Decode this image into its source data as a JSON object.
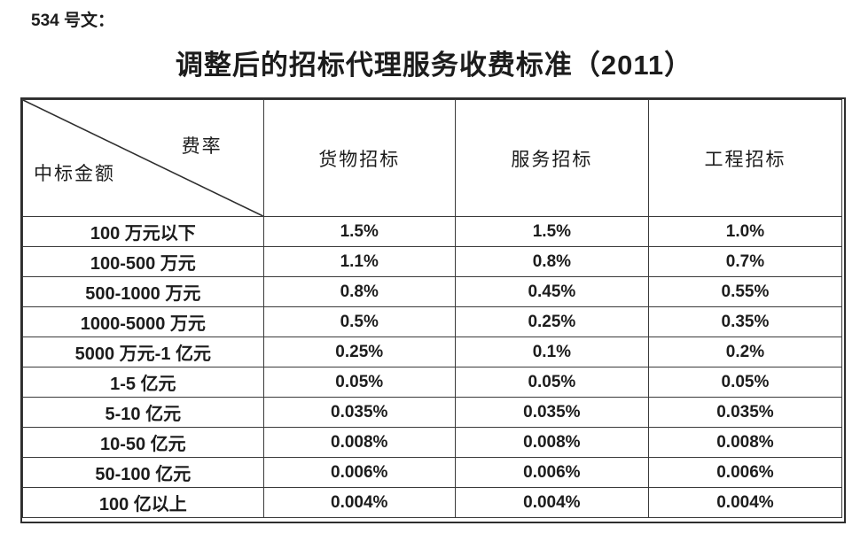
{
  "doc_label": "534 号文：",
  "title": "调整后的招标代理服务收费标准（2011）",
  "table": {
    "corner": {
      "top_right": "费率",
      "bottom_left": "中标金额"
    },
    "columns": [
      "货物招标",
      "服务招标",
      "工程招标"
    ],
    "rows": [
      {
        "label": "100 万元以下",
        "values": [
          "1.5%",
          "1.5%",
          "1.0%"
        ]
      },
      {
        "label": "100-500 万元",
        "values": [
          "1.1%",
          "0.8%",
          "0.7%"
        ]
      },
      {
        "label": "500-1000 万元",
        "values": [
          "0.8%",
          "0.45%",
          "0.55%"
        ]
      },
      {
        "label": "1000-5000 万元",
        "values": [
          "0.5%",
          "0.25%",
          "0.35%"
        ]
      },
      {
        "label": "5000 万元-1 亿元",
        "values": [
          "0.25%",
          "0.1%",
          "0.2%"
        ]
      },
      {
        "label": "1-5 亿元",
        "values": [
          "0.05%",
          "0.05%",
          "0.05%"
        ]
      },
      {
        "label": "5-10 亿元",
        "values": [
          "0.035%",
          "0.035%",
          "0.035%"
        ]
      },
      {
        "label": "10-50 亿元",
        "values": [
          "0.008%",
          "0.008%",
          "0.008%"
        ]
      },
      {
        "label": "50-100 亿元",
        "values": [
          "0.006%",
          "0.006%",
          "0.006%"
        ]
      },
      {
        "label": "100 亿以上",
        "values": [
          "0.004%",
          "0.004%",
          "0.004%"
        ]
      }
    ]
  },
  "colors": {
    "text": "#1c1c1c",
    "border_inner": "#3a3a3a",
    "border_outer": "#2e2e2e",
    "background": "#ffffff"
  }
}
